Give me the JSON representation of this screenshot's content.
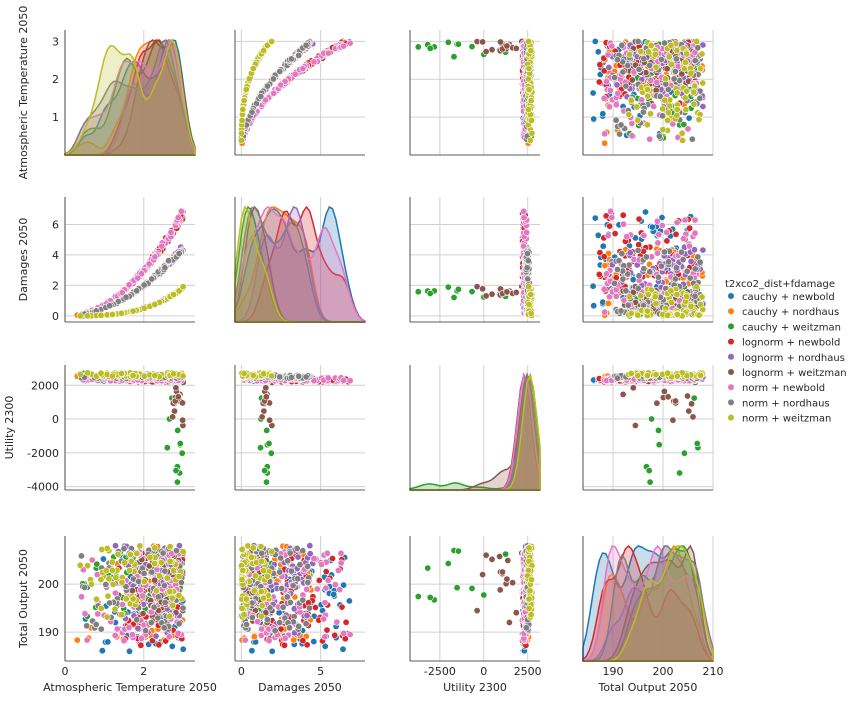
{
  "chart_data": {
    "type": "scatter",
    "variables": [
      "Atmospheric Temperature 2050",
      "Damages 2050",
      "Utility 2300",
      "Total Output 2050"
    ],
    "legend": {
      "title": "t2xco2_dist+fdamage",
      "placement": "right",
      "entries": [
        {
          "name": "cauchy + newbold",
          "color": "#1f77b4"
        },
        {
          "name": "cauchy + nordhaus",
          "color": "#ff7f0e"
        },
        {
          "name": "cauchy + weitzman",
          "color": "#2ca02c"
        },
        {
          "name": "lognorm + newbold",
          "color": "#d62728"
        },
        {
          "name": "lognorm + nordhaus",
          "color": "#9467bd"
        },
        {
          "name": "lognorm + weitzman",
          "color": "#8c564b"
        },
        {
          "name": "norm + newbold",
          "color": "#e377c2"
        },
        {
          "name": "norm + nordhaus",
          "color": "#7f7f7f"
        },
        {
          "name": "norm + weitzman",
          "color": "#bcbd22"
        }
      ]
    },
    "axes": {
      "Atmospheric Temperature 2050": {
        "range": [
          0,
          3.3
        ],
        "ticks": [
          0,
          2
        ],
        "row_ticks": [
          1,
          2,
          3
        ]
      },
      "Damages 2050": {
        "range": [
          -0.4,
          7.8
        ],
        "ticks": [
          0,
          5
        ],
        "row_ticks": [
          0,
          2,
          4,
          6
        ]
      },
      "Utility 2300": {
        "range": [
          -4200,
          3200
        ],
        "ticks": [
          -2500,
          0,
          2500
        ],
        "row_ticks": [
          -4000,
          -2000,
          0,
          2000
        ]
      },
      "Total Output 2050": {
        "range": [
          184,
          210
        ],
        "ticks": [
          190,
          200,
          210
        ],
        "row_ticks": [
          190,
          200
        ]
      }
    },
    "grid": true,
    "diagonal": "kde",
    "groups": [
      {
        "name": "cauchy + newbold",
        "temp": [
          0.3,
          3.0
        ],
        "dam_coef": 0.75,
        "dam_exp": 2.0,
        "util": [
          2200,
          2400
        ],
        "output": [
          186,
          207
        ]
      },
      {
        "name": "cauchy + nordhaus",
        "temp": [
          0.3,
          3.0
        ],
        "dam_coef": 0.5,
        "dam_exp": 2.0,
        "util": [
          2350,
          2550
        ],
        "output": [
          188,
          208
        ]
      },
      {
        "name": "cauchy + weitzman",
        "temp": [
          0.3,
          3.0
        ],
        "dam_coef": 0.055,
        "dam_exp": 3.2,
        "util": [
          -3800,
          2700
        ],
        "output": [
          193,
          207
        ]
      },
      {
        "name": "lognorm + newbold",
        "temp": [
          1.2,
          3.0
        ],
        "dam_coef": 0.75,
        "dam_exp": 2.0,
        "util": [
          2200,
          2400
        ],
        "output": [
          187,
          207
        ]
      },
      {
        "name": "lognorm + nordhaus",
        "temp": [
          1.2,
          3.0
        ],
        "dam_coef": 0.5,
        "dam_exp": 2.0,
        "util": [
          2350,
          2550
        ],
        "output": [
          189,
          208
        ]
      },
      {
        "name": "lognorm + weitzman",
        "temp": [
          1.2,
          3.0
        ],
        "dam_coef": 0.055,
        "dam_exp": 3.2,
        "util": [
          -500,
          2600
        ],
        "output": [
          192,
          207
        ]
      },
      {
        "name": "norm + newbold",
        "temp": [
          0.3,
          3.0
        ],
        "dam_coef": 0.75,
        "dam_exp": 2.0,
        "util": [
          2250,
          2450
        ],
        "output": [
          188,
          207
        ]
      },
      {
        "name": "norm + nordhaus",
        "temp": [
          0.3,
          3.0
        ],
        "dam_coef": 0.5,
        "dam_exp": 2.0,
        "util": [
          2400,
          2600
        ],
        "output": [
          190,
          208
        ]
      },
      {
        "name": "norm + weitzman",
        "temp": [
          0.3,
          3.0
        ],
        "dam_coef": 0.055,
        "dam_exp": 3.2,
        "util": [
          2500,
          2750
        ],
        "output": [
          193,
          208
        ]
      }
    ]
  }
}
